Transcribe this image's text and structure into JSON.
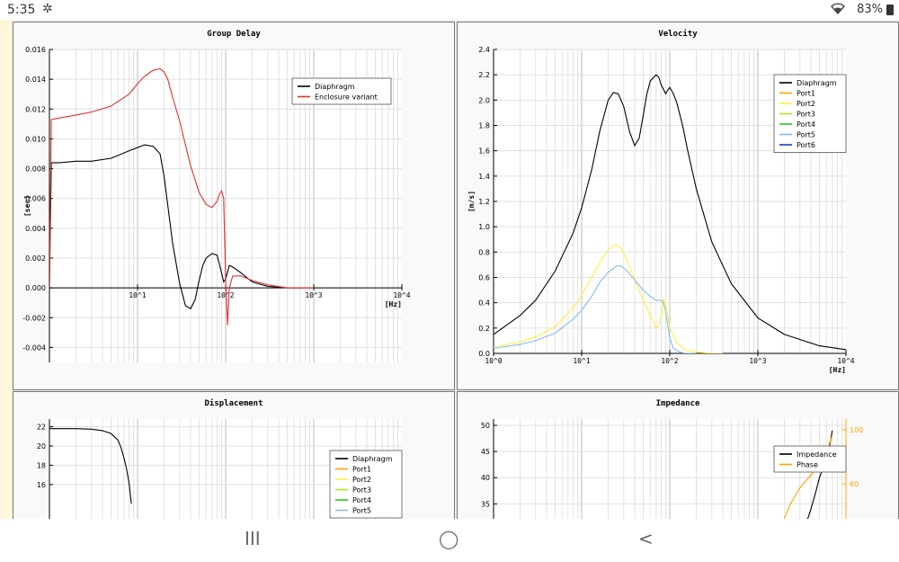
{
  "status": {
    "time": "5:35",
    "battery": "83%"
  },
  "nav": {
    "recents": "III",
    "home": "◯",
    "back": "<"
  },
  "chart_data": [
    {
      "id": "gd",
      "type": "line",
      "title": "Group Delay",
      "xscale": "log",
      "xlim": [
        1,
        10000
      ],
      "ylim": [
        -0.005,
        0.016
      ],
      "ylabel": "[sec]",
      "xlabel": "[Hz]",
      "yticks": [
        "0.016",
        "0.014",
        "0.012",
        "0.010",
        "0.008",
        "0.006",
        "0.004",
        "0.002",
        "0.000",
        "-0.002",
        "-0.004"
      ],
      "ytick_values": [
        0.016,
        0.014,
        0.012,
        0.01,
        0.008,
        0.006,
        0.004,
        0.002,
        0.0,
        -0.002,
        -0.004
      ],
      "xticks": [
        "10^1",
        "10^2",
        "10^3",
        "10^4"
      ],
      "xtick_values": [
        10,
        100,
        1000,
        10000
      ],
      "legend_position": "top-right",
      "series": [
        {
          "name": "Diaphragm",
          "color": "#000000",
          "x": [
            1,
            1.05,
            1.3,
            2,
            3,
            5,
            8,
            12,
            15,
            18,
            20,
            25,
            30,
            35,
            40,
            45,
            50,
            55,
            60,
            70,
            80,
            90,
            95,
            100,
            110,
            120,
            150,
            200,
            300,
            500,
            700,
            1000
          ],
          "y": [
            0.0,
            0.0084,
            0.0084,
            0.0085,
            0.0085,
            0.0087,
            0.0092,
            0.0096,
            0.0095,
            0.009,
            0.0075,
            0.003,
            0.0003,
            -0.0012,
            -0.0014,
            -0.0008,
            0.0005,
            0.0015,
            0.002,
            0.0023,
            0.0022,
            0.001,
            0.0004,
            0.0006,
            0.0015,
            0.0014,
            0.001,
            0.0004,
            0.0001,
            0.0,
            0.0,
            0.0
          ]
        },
        {
          "name": "Enclosure variant",
          "color": "#e53030",
          "x": [
            1,
            1.05,
            1.3,
            2,
            3,
            5,
            8,
            10,
            12,
            15,
            18,
            20,
            22,
            25,
            30,
            35,
            40,
            50,
            60,
            70,
            80,
            85,
            90,
            95,
            100,
            105,
            110,
            120,
            150,
            200,
            300,
            500,
            700,
            1000
          ],
          "y": [
            0.0,
            0.0113,
            0.0114,
            0.0116,
            0.0118,
            0.0122,
            0.013,
            0.0137,
            0.0142,
            0.0146,
            0.0147,
            0.0145,
            0.014,
            0.0128,
            0.0112,
            0.0096,
            0.0082,
            0.0064,
            0.0056,
            0.0054,
            0.0058,
            0.0063,
            0.0065,
            0.006,
            0.0005,
            -0.0025,
            0.0,
            0.0008,
            0.0008,
            0.0005,
            0.0002,
            0.0,
            0.0,
            0.0
          ]
        }
      ]
    },
    {
      "id": "vel",
      "type": "line",
      "title": "Velocity",
      "xscale": "log",
      "xlim": [
        1,
        10000
      ],
      "ylim": [
        0,
        2.4
      ],
      "ylabel": "[m/s]",
      "xlabel": "[Hz]",
      "yticks": [
        "2.4",
        "2.2",
        "2.0",
        "1.8",
        "1.6",
        "1.4",
        "1.2",
        "1.0",
        "0.8",
        "0.6",
        "0.4",
        "0.2",
        "0.0"
      ],
      "ytick_values": [
        2.4,
        2.2,
        2.0,
        1.8,
        1.6,
        1.4,
        1.2,
        1.0,
        0.8,
        0.6,
        0.4,
        0.2,
        0.0
      ],
      "xticks": [
        "10^0",
        "10^1",
        "10^2",
        "10^3",
        "10^4"
      ],
      "xtick_values": [
        1,
        10,
        100,
        1000,
        10000
      ],
      "legend_position": "top-right",
      "series": [
        {
          "name": "Diaphragm",
          "color": "#000000",
          "x": [
            1,
            2,
            3,
            5,
            8,
            10,
            13,
            16,
            20,
            23,
            26,
            30,
            35,
            40,
            45,
            50,
            55,
            60,
            70,
            75,
            80,
            90,
            95,
            100,
            110,
            120,
            140,
            160,
            200,
            300,
            500,
            1000,
            2000,
            5000,
            10000
          ],
          "y": [
            0.15,
            0.3,
            0.42,
            0.65,
            0.95,
            1.15,
            1.45,
            1.75,
            2.0,
            2.06,
            2.05,
            1.95,
            1.75,
            1.64,
            1.7,
            1.88,
            2.05,
            2.15,
            2.2,
            2.18,
            2.12,
            2.05,
            2.08,
            2.1,
            2.05,
            1.98,
            1.8,
            1.6,
            1.3,
            0.88,
            0.55,
            0.28,
            0.15,
            0.06,
            0.03
          ]
        },
        {
          "name": "Port1",
          "color": "#ffa500",
          "x": [],
          "y": []
        },
        {
          "name": "Port2",
          "color": "#ffee44",
          "x": [
            1,
            2,
            3,
            5,
            8,
            10,
            13,
            16,
            20,
            24,
            28,
            32,
            40,
            50,
            60,
            70,
            75,
            80,
            85,
            90,
            95,
            100,
            120,
            150,
            200,
            300,
            400
          ],
          "y": [
            0.05,
            0.09,
            0.13,
            0.21,
            0.36,
            0.46,
            0.6,
            0.72,
            0.82,
            0.86,
            0.83,
            0.75,
            0.58,
            0.42,
            0.3,
            0.2,
            0.22,
            0.3,
            0.43,
            0.4,
            0.3,
            0.2,
            0.08,
            0.03,
            0.01,
            0.0,
            0.0
          ]
        },
        {
          "name": "Port3",
          "color": "#aaee22",
          "x": [],
          "y": []
        },
        {
          "name": "Port4",
          "color": "#22cc22",
          "x": [],
          "y": []
        },
        {
          "name": "Port5",
          "color": "#88bbee",
          "x": [
            1,
            2,
            3,
            5,
            8,
            10,
            13,
            16,
            20,
            25,
            28,
            32,
            40,
            50,
            60,
            70,
            80,
            85,
            90,
            95,
            100,
            110,
            130,
            150,
            200
          ],
          "y": [
            0.04,
            0.07,
            0.1,
            0.16,
            0.27,
            0.34,
            0.45,
            0.56,
            0.64,
            0.69,
            0.69,
            0.66,
            0.58,
            0.5,
            0.45,
            0.42,
            0.42,
            0.4,
            0.33,
            0.22,
            0.12,
            0.04,
            0.01,
            0.0,
            0.0
          ]
        },
        {
          "name": "Port6",
          "color": "#1a3ecf",
          "x": [],
          "y": []
        }
      ]
    },
    {
      "id": "disp",
      "type": "line",
      "title": "Displacement",
      "xscale": "log",
      "xlim": [
        1,
        10000
      ],
      "ylim": [
        11.6,
        22.8
      ],
      "yticks": [
        "22",
        "20",
        "18",
        "16"
      ],
      "ytick_values": [
        22,
        20,
        18,
        16
      ],
      "legend_position": "top-right",
      "series": [
        {
          "name": "Diaphragm",
          "color": "#000000",
          "x": [
            1,
            2,
            3,
            4,
            5,
            6,
            6.5,
            7,
            7.5,
            8,
            8.5
          ],
          "y": [
            21.8,
            21.8,
            21.75,
            21.6,
            21.3,
            20.6,
            19.8,
            18.8,
            17.6,
            16.2,
            14.0
          ]
        },
        {
          "name": "Port1",
          "color": "#ffa500",
          "x": [],
          "y": []
        },
        {
          "name": "Port2",
          "color": "#ffee44",
          "x": [],
          "y": []
        },
        {
          "name": "Port3",
          "color": "#aaee22",
          "x": [],
          "y": []
        },
        {
          "name": "Port4",
          "color": "#22cc22",
          "x": [],
          "y": []
        },
        {
          "name": "Port5",
          "color": "#88bbee",
          "x": [],
          "y": []
        }
      ]
    },
    {
      "id": "imp",
      "type": "line",
      "title": "Impedance",
      "xscale": "log",
      "xlim": [
        1,
        10000
      ],
      "ylim": [
        30.6,
        51.2
      ],
      "yticks": [
        "50",
        "45",
        "40",
        "35"
      ],
      "ytick_values": [
        50,
        45,
        40,
        35
      ],
      "y2lim": [
        28,
        108
      ],
      "y2ticks": [
        "100",
        "60"
      ],
      "y2tick_values": [
        100,
        60
      ],
      "legend_position": "top-right",
      "series": [
        {
          "name": "Impedance",
          "color": "#000000",
          "x": [
            3500,
            4000,
            4500,
            5000,
            5800,
            6500,
            7000
          ],
          "y": [
            31,
            34,
            37,
            40,
            43,
            46,
            49
          ]
        },
        {
          "name": "Phase",
          "color": "#ffa500",
          "axis": "right",
          "x": [
            2000,
            2300,
            2700,
            3000,
            3500,
            4200,
            5000,
            6000,
            6500,
            7000
          ],
          "y": [
            34,
            44,
            52,
            57,
            62,
            68,
            75,
            83,
            90,
            96
          ]
        }
      ]
    }
  ]
}
